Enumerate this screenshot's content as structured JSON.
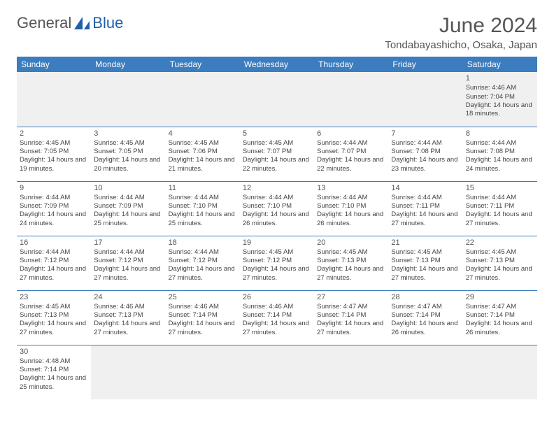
{
  "logo": {
    "text1": "General",
    "text2": "Blue"
  },
  "title": "June 2024",
  "location": "Tondabayashicho, Osaka, Japan",
  "colors": {
    "header_bg": "#3b7dbf",
    "header_text": "#ffffff",
    "border": "#3b7dbf",
    "muted_bg": "#f0f0f0",
    "text": "#444444",
    "title_color": "#555555"
  },
  "day_headers": [
    "Sunday",
    "Monday",
    "Tuesday",
    "Wednesday",
    "Thursday",
    "Friday",
    "Saturday"
  ],
  "weeks": [
    [
      null,
      null,
      null,
      null,
      null,
      null,
      {
        "n": 1,
        "sr": "4:46 AM",
        "ss": "7:04 PM",
        "dl": "14 hours and 18 minutes."
      }
    ],
    [
      {
        "n": 2,
        "sr": "4:45 AM",
        "ss": "7:05 PM",
        "dl": "14 hours and 19 minutes."
      },
      {
        "n": 3,
        "sr": "4:45 AM",
        "ss": "7:05 PM",
        "dl": "14 hours and 20 minutes."
      },
      {
        "n": 4,
        "sr": "4:45 AM",
        "ss": "7:06 PM",
        "dl": "14 hours and 21 minutes."
      },
      {
        "n": 5,
        "sr": "4:45 AM",
        "ss": "7:07 PM",
        "dl": "14 hours and 22 minutes."
      },
      {
        "n": 6,
        "sr": "4:44 AM",
        "ss": "7:07 PM",
        "dl": "14 hours and 22 minutes."
      },
      {
        "n": 7,
        "sr": "4:44 AM",
        "ss": "7:08 PM",
        "dl": "14 hours and 23 minutes."
      },
      {
        "n": 8,
        "sr": "4:44 AM",
        "ss": "7:08 PM",
        "dl": "14 hours and 24 minutes."
      }
    ],
    [
      {
        "n": 9,
        "sr": "4:44 AM",
        "ss": "7:09 PM",
        "dl": "14 hours and 24 minutes."
      },
      {
        "n": 10,
        "sr": "4:44 AM",
        "ss": "7:09 PM",
        "dl": "14 hours and 25 minutes."
      },
      {
        "n": 11,
        "sr": "4:44 AM",
        "ss": "7:10 PM",
        "dl": "14 hours and 25 minutes."
      },
      {
        "n": 12,
        "sr": "4:44 AM",
        "ss": "7:10 PM",
        "dl": "14 hours and 26 minutes."
      },
      {
        "n": 13,
        "sr": "4:44 AM",
        "ss": "7:10 PM",
        "dl": "14 hours and 26 minutes."
      },
      {
        "n": 14,
        "sr": "4:44 AM",
        "ss": "7:11 PM",
        "dl": "14 hours and 27 minutes."
      },
      {
        "n": 15,
        "sr": "4:44 AM",
        "ss": "7:11 PM",
        "dl": "14 hours and 27 minutes."
      }
    ],
    [
      {
        "n": 16,
        "sr": "4:44 AM",
        "ss": "7:12 PM",
        "dl": "14 hours and 27 minutes."
      },
      {
        "n": 17,
        "sr": "4:44 AM",
        "ss": "7:12 PM",
        "dl": "14 hours and 27 minutes."
      },
      {
        "n": 18,
        "sr": "4:44 AM",
        "ss": "7:12 PM",
        "dl": "14 hours and 27 minutes."
      },
      {
        "n": 19,
        "sr": "4:45 AM",
        "ss": "7:12 PM",
        "dl": "14 hours and 27 minutes."
      },
      {
        "n": 20,
        "sr": "4:45 AM",
        "ss": "7:13 PM",
        "dl": "14 hours and 27 minutes."
      },
      {
        "n": 21,
        "sr": "4:45 AM",
        "ss": "7:13 PM",
        "dl": "14 hours and 27 minutes."
      },
      {
        "n": 22,
        "sr": "4:45 AM",
        "ss": "7:13 PM",
        "dl": "14 hours and 27 minutes."
      }
    ],
    [
      {
        "n": 23,
        "sr": "4:45 AM",
        "ss": "7:13 PM",
        "dl": "14 hours and 27 minutes."
      },
      {
        "n": 24,
        "sr": "4:46 AM",
        "ss": "7:13 PM",
        "dl": "14 hours and 27 minutes."
      },
      {
        "n": 25,
        "sr": "4:46 AM",
        "ss": "7:14 PM",
        "dl": "14 hours and 27 minutes."
      },
      {
        "n": 26,
        "sr": "4:46 AM",
        "ss": "7:14 PM",
        "dl": "14 hours and 27 minutes."
      },
      {
        "n": 27,
        "sr": "4:47 AM",
        "ss": "7:14 PM",
        "dl": "14 hours and 27 minutes."
      },
      {
        "n": 28,
        "sr": "4:47 AM",
        "ss": "7:14 PM",
        "dl": "14 hours and 26 minutes."
      },
      {
        "n": 29,
        "sr": "4:47 AM",
        "ss": "7:14 PM",
        "dl": "14 hours and 26 minutes."
      }
    ],
    [
      {
        "n": 30,
        "sr": "4:48 AM",
        "ss": "7:14 PM",
        "dl": "14 hours and 25 minutes."
      },
      null,
      null,
      null,
      null,
      null,
      null
    ]
  ],
  "labels": {
    "sunrise": "Sunrise:",
    "sunset": "Sunset:",
    "daylight": "Daylight:"
  }
}
